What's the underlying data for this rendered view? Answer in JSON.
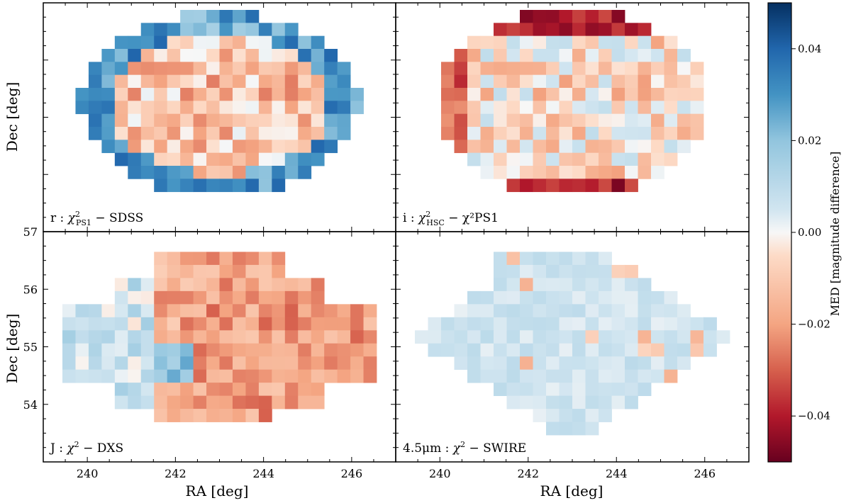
{
  "chart_data": {
    "type": "heatmap",
    "description_axes": {
      "xlabel": "RA [deg]",
      "ylabel": "Dec [deg]",
      "xlim": [
        239.0,
        247.0
      ],
      "ylim": [
        53.0,
        57.0
      ],
      "xticks": [
        "240",
        "242",
        "244",
        "246"
      ],
      "yticks": [
        "54",
        "55",
        "56",
        "57"
      ]
    },
    "colorbar": {
      "label": "MED [magnitude difference]",
      "vmin": -0.05,
      "vmax": 0.05,
      "ticks": [
        "0.04",
        "0.02",
        "0.00",
        "−0.02",
        "−0.04"
      ],
      "colors": {
        "high": "#1f67ad",
        "mid": "#f7f7f7",
        "low": "#6b0218"
      }
    },
    "grid_step_deg": 0.3,
    "panels": [
      {
        "id": "r",
        "band": "r",
        "label_text": "r :  χ²_PS1 − SDSS",
        "label_band": "r :",
        "label_chi": "χ",
        "label_sup": "2",
        "label_sub": "PS1",
        "label_rest": " − SDSS",
        "rows": 15,
        "cols": 24,
        "pattern": "r"
      },
      {
        "id": "i",
        "band": "i",
        "label_text": "i :  χ²_HSC − χ²_PS1",
        "label_band": "i :",
        "label_chi": "χ",
        "label_sup": "2",
        "label_sub": "HSC",
        "label_rest": " − χ²PS1",
        "rows": 15,
        "cols": 24,
        "pattern": "i"
      },
      {
        "id": "J",
        "band": "J",
        "label_text": "J :  χ² − DXS",
        "label_band": "J :",
        "label_chi": "χ",
        "label_sup": "2",
        "label_sub": "",
        "label_rest": " − DXS",
        "rows": 15,
        "cols": 24,
        "pattern": "J"
      },
      {
        "id": "w2",
        "band": "4.5μm",
        "label_text": "4.5μm :  χ² − SWIRE",
        "label_band": "4.5μm :",
        "label_chi": "χ",
        "label_sup": "2",
        "label_sub": "",
        "label_rest": " − SWIRE",
        "rows": 15,
        "cols": 24,
        "pattern": "w2"
      }
    ]
  }
}
